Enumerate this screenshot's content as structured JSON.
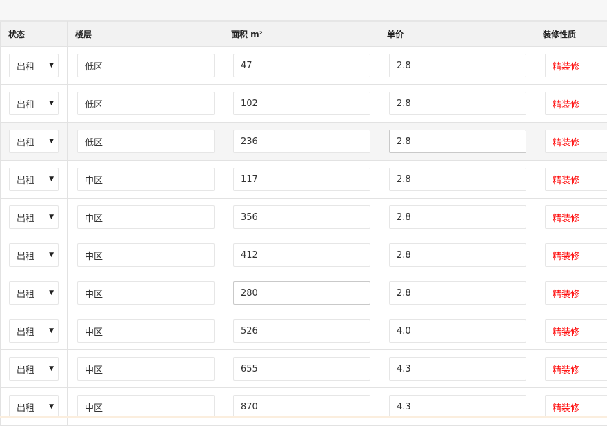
{
  "columns": [
    "状态",
    "楼层",
    "面积 m²",
    "单价",
    "装修性质"
  ],
  "colors": {
    "decoration_text": "#ff0000",
    "highlight_row": "#f5f5f5"
  },
  "rows": [
    {
      "status": "出租",
      "floor": "低区",
      "area": "47",
      "price": "2.8",
      "decoration": "精装修"
    },
    {
      "status": "出租",
      "floor": "低区",
      "area": "102",
      "price": "2.8",
      "decoration": "精装修"
    },
    {
      "status": "出租",
      "floor": "低区",
      "area": "236",
      "price": "2.8",
      "decoration": "精装修"
    },
    {
      "status": "出租",
      "floor": "中区",
      "area": "117",
      "price": "2.8",
      "decoration": "精装修"
    },
    {
      "status": "出租",
      "floor": "中区",
      "area": "356",
      "price": "2.8",
      "decoration": "精装修"
    },
    {
      "status": "出租",
      "floor": "中区",
      "area": "412",
      "price": "2.8",
      "decoration": "精装修"
    },
    {
      "status": "出租",
      "floor": "中区",
      "area": "280",
      "price": "2.8",
      "decoration": "精装修"
    },
    {
      "status": "出租",
      "floor": "中区",
      "area": "526",
      "price": "4.0",
      "decoration": "精装修"
    },
    {
      "status": "出租",
      "floor": "中区",
      "area": "655",
      "price": "4.3",
      "decoration": "精装修"
    },
    {
      "status": "出租",
      "floor": "中区",
      "area": "870",
      "price": "4.3",
      "decoration": "精装修"
    }
  ]
}
